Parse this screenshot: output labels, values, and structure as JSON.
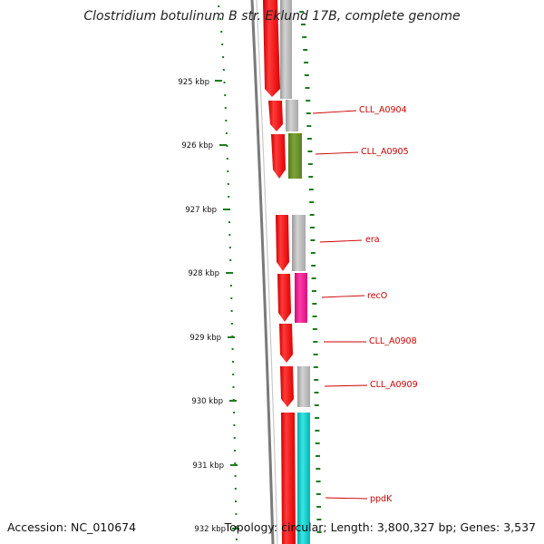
{
  "title": "Clostridium botulinum B str. Eklund 17B, complete genome",
  "footer": {
    "accession": "Accession: NC_010674",
    "topology": "Topology: circular; Length: 3,800,327 bp; Genes: 3,537"
  },
  "colors": {
    "forward_gene": "#ff0000",
    "feature_gray": "#b8b8b8",
    "feature_green": "#6b8e23",
    "feature_magenta": "#ee1190",
    "feature_cyan": "#00c8c8",
    "label": "#cc0000",
    "tick": "#1e7b1e",
    "backbone": "#808080"
  },
  "ticks": [
    {
      "label": "925 kbp"
    },
    {
      "label": "926 kbp"
    },
    {
      "label": "927 kbp"
    },
    {
      "label": "928 kbp"
    },
    {
      "label": "929 kbp"
    },
    {
      "label": "930 kbp"
    },
    {
      "label": "931 kbp"
    },
    {
      "label": "932 kbp"
    }
  ],
  "gene_labels": [
    {
      "text": "CLL_A0904"
    },
    {
      "text": "CLL_A0905"
    },
    {
      "text": "era"
    },
    {
      "text": "recO"
    },
    {
      "text": "CLL_A0908"
    },
    {
      "text": "CLL_A0909"
    },
    {
      "text": "ppdK"
    }
  ]
}
